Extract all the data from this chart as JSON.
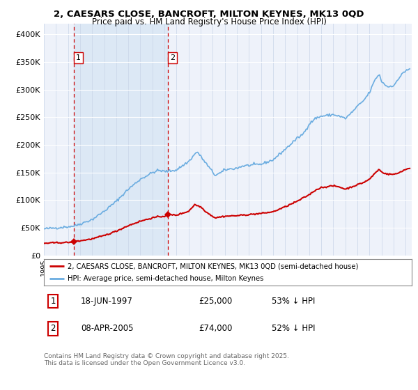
{
  "title_line1": "2, CAESARS CLOSE, BANCROFT, MILTON KEYNES, MK13 0QD",
  "title_line2": "Price paid vs. HM Land Registry's House Price Index (HPI)",
  "xlim_start": 1995.0,
  "xlim_end": 2025.5,
  "ylim_min": 0,
  "ylim_max": 420000,
  "sale1_date": 1997.46,
  "sale1_price": 25000,
  "sale1_label": "1",
  "sale2_date": 2005.27,
  "sale2_price": 74000,
  "sale2_label": "2",
  "legend_entry1": "2, CAESARS CLOSE, BANCROFT, MILTON KEYNES, MK13 0QD (semi-detached house)",
  "legend_entry2": "HPI: Average price, semi-detached house, Milton Keynes",
  "table_row1": [
    "1",
    "18-JUN-1997",
    "£25,000",
    "53% ↓ HPI"
  ],
  "table_row2": [
    "2",
    "08-APR-2005",
    "£74,000",
    "52% ↓ HPI"
  ],
  "footnote": "Contains HM Land Registry data © Crown copyright and database right 2025.\nThis data is licensed under the Open Government Licence v3.0.",
  "background_color": "#ffffff",
  "plot_bg_color": "#eef2fa",
  "grid_color": "#ffffff",
  "hpi_color": "#6aace0",
  "property_color": "#cc0000",
  "dashed_line_color": "#cc0000",
  "shade_color": "#dce8f5",
  "yticks": [
    0,
    50000,
    100000,
    150000,
    200000,
    250000,
    300000,
    350000,
    400000
  ],
  "ytick_labels": [
    "£0",
    "£50K",
    "£100K",
    "£150K",
    "£200K",
    "£250K",
    "£300K",
    "£350K",
    "£400K"
  ]
}
